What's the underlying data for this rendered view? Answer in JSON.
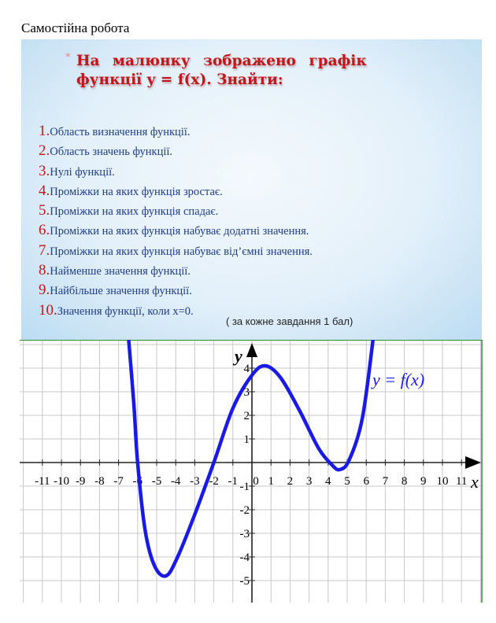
{
  "document": {
    "title": "Самостійна робота"
  },
  "slide": {
    "heading_line1": "На малюнку зображено графік",
    "heading_line2": "функції y = f(x). Знайти:",
    "tasks": [
      {
        "n": "1.",
        "text": "Область визначення функції."
      },
      {
        "n": "2.",
        "text": "Область значень функції."
      },
      {
        "n": "3.",
        "text": "Нулі функції."
      },
      {
        "n": "4.",
        "text": "Проміжки на яких функція зростає."
      },
      {
        "n": "5.",
        "text": "Проміжки на яких функція спадає."
      },
      {
        "n": "6.",
        "text": "Проміжки на яких функція набуває додатні значення."
      },
      {
        "n": "7.",
        "text": "Проміжки на яких функція набуває від’ємні значення."
      },
      {
        "n": "8.",
        "text": "Найменше значення функції."
      },
      {
        "n": "9.",
        "text": "Найбільше значення функції."
      },
      {
        "n": "10.",
        "text": "Значення функції, коли x=0."
      }
    ],
    "note": "( за кожне завдання 1 бал)"
  },
  "chart_data": {
    "type": "line",
    "xlabel": "x",
    "ylabel": "y",
    "series_label": "y = f(x)",
    "xlim": [
      -11.5,
      11.8
    ],
    "ylim": [
      -5.6,
      5.3
    ],
    "x_ticks": [
      -11,
      -10,
      -9,
      -8,
      -7,
      -6,
      -5,
      -4,
      -3,
      -2,
      -1,
      0,
      1,
      2,
      3,
      4,
      5,
      6,
      7,
      8,
      9,
      10,
      11
    ],
    "y_ticks": [
      -5,
      -4,
      -3,
      -2,
      -1,
      1,
      2,
      3,
      4
    ],
    "grid": true,
    "color": "#1a1ae6",
    "points": [
      [
        -6.5,
        5.5
      ],
      [
        -6.2,
        2.5
      ],
      [
        -6,
        0
      ],
      [
        -5.6,
        -2.9
      ],
      [
        -5.1,
        -4.4
      ],
      [
        -4.5,
        -4.8
      ],
      [
        -3.9,
        -4.0
      ],
      [
        -3,
        -2.2
      ],
      [
        -2,
        0
      ],
      [
        -1,
        2.3
      ],
      [
        0,
        3.7
      ],
      [
        0.7,
        4.1
      ],
      [
        1.5,
        3.6
      ],
      [
        2.5,
        2.2
      ],
      [
        3.5,
        0.6
      ],
      [
        4.2,
        -0.1
      ],
      [
        4.6,
        -0.3
      ],
      [
        5.1,
        0.1
      ],
      [
        5.8,
        1.9
      ],
      [
        6.4,
        5.5
      ]
    ]
  }
}
